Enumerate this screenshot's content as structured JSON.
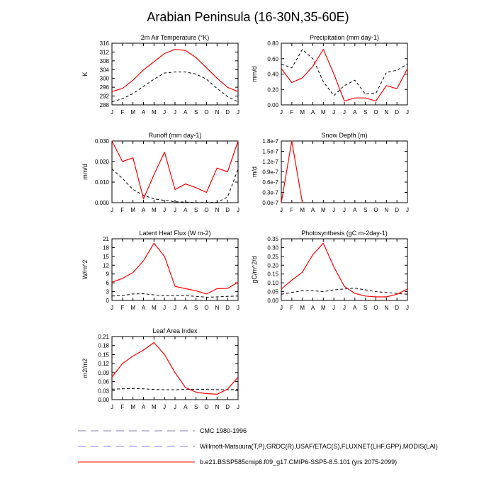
{
  "page": {
    "title": "Arabian Peninsula (16-30N,35-60E)"
  },
  "legend": [
    {
      "label": "CMC 1980-1996",
      "color": "#8080a0",
      "dash": "long"
    },
    {
      "label": "Willmott-Matsuura(T,P),GRDC(R),USAF/ETAC(S),FLUXNET(LHF,GPP),MODIS(LAI)",
      "color": "#8080e0",
      "dash": "long"
    },
    {
      "label": "b.e21.BSSP585cmip6.f09_g17.CMIP6-SSP5-8.5.101 (yrs 2075-2099)",
      "color": "#ff0000",
      "dash": "solid"
    }
  ],
  "colors": {
    "model": "#ff0000",
    "obs": "#000000"
  },
  "chart_data": [
    {
      "type": "line",
      "title": "2m Air Temperature (°K)",
      "ylabel": "K",
      "ylim": [
        288,
        318
      ],
      "yticks": [
        "288",
        "292",
        "296",
        "300",
        "304",
        "308",
        "312",
        "316"
      ],
      "x": [
        "J",
        "F",
        "M",
        "A",
        "M",
        "J",
        "J",
        "A",
        "S",
        "O",
        "N",
        "D",
        "J"
      ],
      "series": [
        {
          "key": "model",
          "style": "solid",
          "values": [
            294.5,
            296,
            300,
            305,
            309,
            313,
            315,
            314.5,
            311,
            306,
            301,
            296.5,
            294.5
          ]
        },
        {
          "key": "obs",
          "style": "dashed",
          "values": [
            289.5,
            291,
            293.5,
            297,
            300.5,
            303.5,
            304,
            304,
            303,
            300.5,
            296,
            292,
            289.5
          ]
        }
      ]
    },
    {
      "type": "line",
      "title": "Precipitation (mm day-1)",
      "ylabel": "mm/d",
      "ylim": [
        0,
        0.8
      ],
      "yticks": [
        "0.00",
        "0.20",
        "0.40",
        "0.60",
        "0.80"
      ],
      "x": [
        "J",
        "F",
        "M",
        "A",
        "M",
        "J",
        "J",
        "A",
        "S",
        "O",
        "N",
        "D",
        "J"
      ],
      "series": [
        {
          "key": "model",
          "style": "solid",
          "values": [
            0.47,
            0.29,
            0.35,
            0.5,
            0.72,
            0.4,
            0.05,
            0.09,
            0.09,
            0.05,
            0.25,
            0.21,
            0.47
          ]
        },
        {
          "key": "obs",
          "style": "dashed",
          "values": [
            0.53,
            0.48,
            0.72,
            0.6,
            0.3,
            0.12,
            0.25,
            0.32,
            0.14,
            0.15,
            0.42,
            0.45,
            0.53
          ]
        }
      ]
    },
    {
      "type": "line",
      "title": "Runoff (mm day-1)",
      "ylabel": "mm/d",
      "ylim": [
        0,
        0.033
      ],
      "yticks": [
        "0.000",
        "0.010",
        "0.020",
        "0.030"
      ],
      "x": [
        "J",
        "F",
        "M",
        "A",
        "M",
        "J",
        "J",
        "A",
        "S",
        "O",
        "N",
        "D",
        "J"
      ],
      "series": [
        {
          "key": "model",
          "style": "solid",
          "values": [
            0.033,
            0.022,
            0.024,
            0.002,
            0.015,
            0.027,
            0.007,
            0.01,
            0.008,
            0.0055,
            0.0185,
            0.0165,
            0.033
          ]
        },
        {
          "key": "obs",
          "style": "dashed",
          "values": [
            0.018,
            0.013,
            0.007,
            0.004,
            0.002,
            0.0012,
            0.0005,
            0.0003,
            0.0001,
            0.0001,
            0.0002,
            0.003,
            0.018
          ]
        }
      ]
    },
    {
      "type": "line",
      "title": "Snow Depth (m)",
      "ylabel": "m/d",
      "ylim": [
        0,
        1.8e-07
      ],
      "yticks": [
        "0.0e-7",
        "0.3e-7",
        "0.6e-7",
        "0.9e-7",
        "1.2e-7",
        "1.5e-7",
        "1.8e-7"
      ],
      "x": [
        "J",
        "F",
        "M",
        "A",
        "M",
        "J",
        "J",
        "A",
        "S",
        "O",
        "N",
        "D",
        "J"
      ],
      "series": [
        {
          "key": "model",
          "style": "solid",
          "values": [
            0,
            1.8e-07,
            0,
            null,
            null,
            null,
            null,
            null,
            null,
            null,
            null,
            null,
            null
          ]
        }
      ]
    },
    {
      "type": "line",
      "title": "Latent Heat Flux (W m-2)",
      "ylabel": "W/m^2",
      "ylim": [
        0,
        21
      ],
      "yticks": [
        "0",
        "3",
        "6",
        "9",
        "12",
        "15",
        "18",
        "21"
      ],
      "x": [
        "J",
        "F",
        "M",
        "A",
        "M",
        "J",
        "J",
        "A",
        "S",
        "O",
        "N",
        "D",
        "J"
      ],
      "series": [
        {
          "key": "model",
          "style": "solid",
          "values": [
            6.2,
            7.5,
            9.5,
            13.5,
            19.5,
            15,
            4.8,
            4,
            3.3,
            2.2,
            4,
            4.1,
            6.2
          ]
        },
        {
          "key": "obs",
          "style": "dashed",
          "values": [
            1.5,
            1.7,
            2.2,
            2.3,
            1.9,
            1.6,
            1.6,
            1.6,
            1.4,
            1.1,
            1.2,
            1.4,
            1.5
          ]
        }
      ]
    },
    {
      "type": "line",
      "title": "Photosynthesis (gC m-2day-1)",
      "ylabel": "gC/m^2/d",
      "ylim": [
        0,
        0.35
      ],
      "yticks": [
        "0.00",
        "0.05",
        "0.10",
        "0.15",
        "0.20",
        "0.25",
        "0.30",
        "0.35"
      ],
      "x": [
        "J",
        "F",
        "M",
        "A",
        "M",
        "J",
        "J",
        "A",
        "S",
        "O",
        "N",
        "D",
        "J"
      ],
      "series": [
        {
          "key": "model",
          "style": "solid",
          "values": [
            0.065,
            0.115,
            0.16,
            0.26,
            0.325,
            0.19,
            0.08,
            0.04,
            0.025,
            0.02,
            0.02,
            0.035,
            0.065
          ]
        },
        {
          "key": "obs",
          "style": "dashed",
          "values": [
            0.035,
            0.045,
            0.055,
            0.055,
            0.05,
            0.06,
            0.065,
            0.07,
            0.06,
            0.05,
            0.045,
            0.04,
            0.035
          ]
        }
      ]
    },
    {
      "type": "line",
      "title": "Leaf Area Index",
      "ylabel": "m2/m2",
      "ylim": [
        0,
        0.21
      ],
      "yticks": [
        "0.00",
        "0.03",
        "0.06",
        "0.09",
        "0.12",
        "0.15",
        "0.18",
        "0.21"
      ],
      "x": [
        "J",
        "F",
        "M",
        "A",
        "M",
        "J",
        "J",
        "A",
        "S",
        "O",
        "N",
        "D",
        "J"
      ],
      "series": [
        {
          "key": "model",
          "style": "solid",
          "values": [
            0.075,
            0.12,
            0.145,
            0.165,
            0.19,
            0.15,
            0.09,
            0.04,
            0.025,
            0.02,
            0.018,
            0.035,
            0.075
          ]
        },
        {
          "key": "obs",
          "style": "dashed",
          "values": [
            0.035,
            0.036,
            0.037,
            0.036,
            0.034,
            0.033,
            0.033,
            0.034,
            0.034,
            0.034,
            0.033,
            0.033,
            0.034
          ]
        }
      ]
    }
  ]
}
